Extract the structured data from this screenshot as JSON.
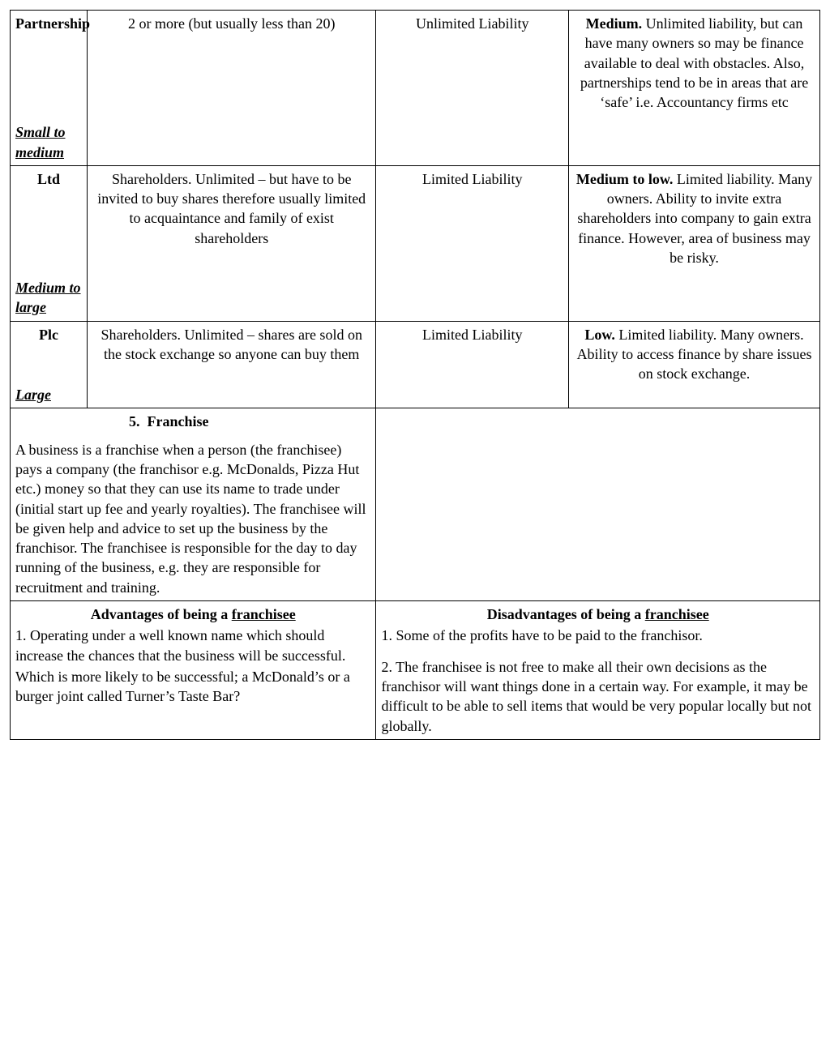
{
  "table": {
    "rows": [
      {
        "type": "Partnership",
        "size": "Small to medium",
        "owners": "2 or more (but usually less than 20)",
        "liability": "Unlimited Liability",
        "risk_bold": "Medium.",
        "risk_rest": " Unlimited liability, but can have many owners so may be finance available to deal with obstacles. Also, partnerships tend to be in areas that are ‘safe’ i.e. Accountancy firms etc"
      },
      {
        "type": "Ltd",
        "size": "Medium to large",
        "owners": "Shareholders. Unlimited – but have to be invited to buy shares therefore usually limited to acquaintance and family of exist shareholders",
        "liability": "Limited Liability",
        "risk_bold": "Medium to low.",
        "risk_rest": " Limited liability. Many owners. Ability to invite extra shareholders into company to gain extra finance. However, area of business may be risky."
      },
      {
        "type": "Plc",
        "size": "Large",
        "owners": "Shareholders. Unlimited – shares are sold on the stock exchange so anyone can buy them",
        "liability": "Limited Liability",
        "risk_bold": "Low.",
        "risk_rest": " Limited liability. Many owners. Ability to access finance by share issues on stock exchange."
      }
    ]
  },
  "franchise": {
    "number": "5.",
    "title": "Franchise",
    "body": "A business is a franchise when a person (the franchisee) pays a company (the franchisor e.g. McDonalds, Pizza Hut etc.) money so that they can use its name to trade under (initial start up fee and yearly royalties).  The franchisee will be given help and advice to set up the business by the franchisor. The franchisee is responsible for the day to day running of the business, e.g. they are responsible for recruitment and training."
  },
  "advantages": {
    "head_pre": "Advantages of being a ",
    "head_u": "franchisee",
    "item1": "1. Operating under a well known name which should increase the chances that the business will be successful.",
    "item1b": "Which is more likely to be successful; a McDonald’s or a burger joint called Turner’s Taste Bar?"
  },
  "disadvantages": {
    "head_pre": "Disadvantages of being a ",
    "head_u": "franchisee",
    "item1": "1. Some of the profits have to be paid to the franchisor.",
    "item2": "2. The franchisee is not free to make all their own decisions as the franchisor will want things done in a certain way. For example, it may be difficult to be able to sell items that would be very popular locally but not globally."
  }
}
